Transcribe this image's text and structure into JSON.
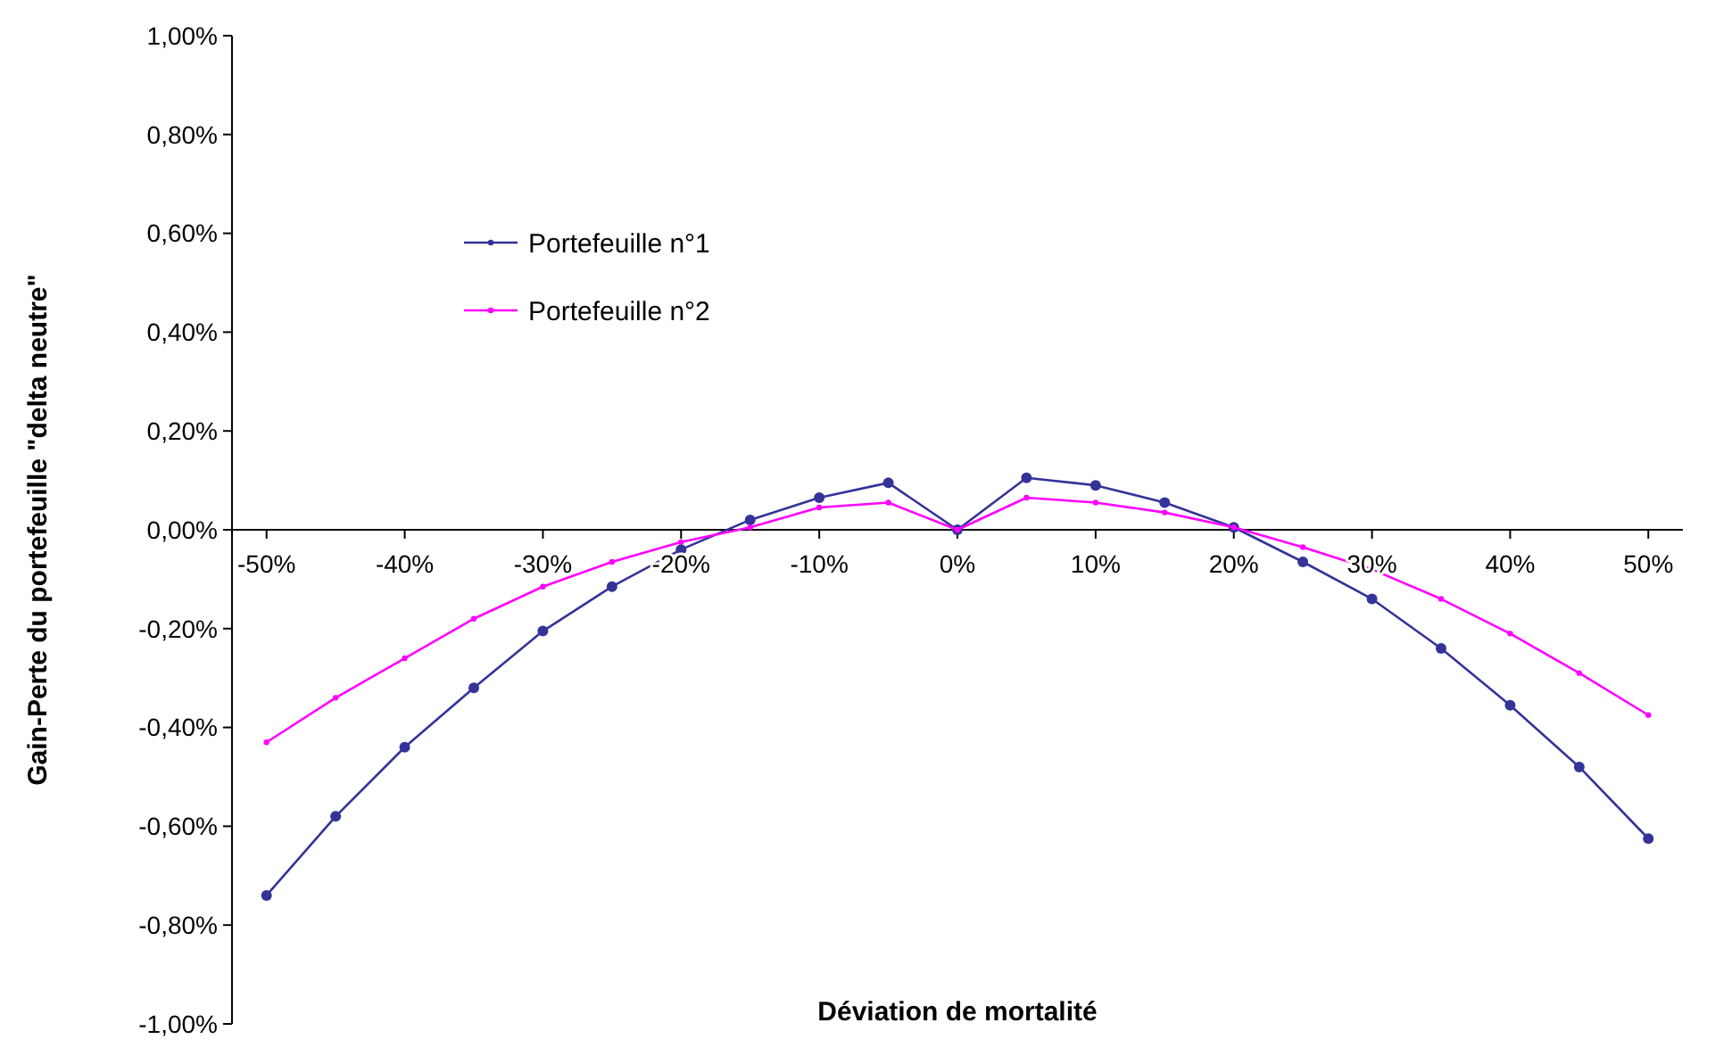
{
  "chart_data": {
    "type": "line",
    "xlabel": "Déviation de mortalité",
    "ylabel": "Gain-Perte du portefeuille \"delta neutre\"",
    "x": [
      -50,
      -45,
      -40,
      -35,
      -30,
      -25,
      -20,
      -15,
      -10,
      -5,
      0,
      5,
      10,
      15,
      20,
      25,
      30,
      35,
      40,
      45,
      50
    ],
    "xlim": [
      -52.5,
      52.5
    ],
    "xticks": [
      {
        "value": -50,
        "label": "-50%"
      },
      {
        "value": -40,
        "label": "-40%"
      },
      {
        "value": -30,
        "label": "-30%"
      },
      {
        "value": -20,
        "label": "-20%"
      },
      {
        "value": -10,
        "label": "-10%"
      },
      {
        "value": 0,
        "label": "0%"
      },
      {
        "value": 10,
        "label": "10%"
      },
      {
        "value": 20,
        "label": "20%"
      },
      {
        "value": 30,
        "label": "30%"
      },
      {
        "value": 40,
        "label": "40%"
      },
      {
        "value": 50,
        "label": "50%"
      }
    ],
    "ylim": [
      -1,
      1
    ],
    "yticks": [
      {
        "value": -1,
        "label": "-1,00%"
      },
      {
        "value": -0.8,
        "label": "-0,80%"
      },
      {
        "value": -0.6,
        "label": "-0,60%"
      },
      {
        "value": -0.4,
        "label": "-0,40%"
      },
      {
        "value": -0.2,
        "label": "-0,20%"
      },
      {
        "value": 0,
        "label": "0,00%"
      },
      {
        "value": 0.2,
        "label": "0,20%"
      },
      {
        "value": 0.4,
        "label": "0,40%"
      },
      {
        "value": 0.6,
        "label": "0,60%"
      },
      {
        "value": 0.8,
        "label": "0,80%"
      },
      {
        "value": 1,
        "label": "1,00%"
      }
    ],
    "series": [
      {
        "name": "Portefeuille n°1",
        "color": "#333399",
        "values": [
          -0.74,
          -0.58,
          -0.44,
          -0.32,
          -0.205,
          -0.115,
          -0.04,
          0.02,
          0.065,
          0.095,
          0,
          0.105,
          0.09,
          0.055,
          0.005,
          -0.065,
          -0.14,
          -0.24,
          -0.355,
          -0.48,
          -0.625
        ]
      },
      {
        "name": "Portefeuille n°2",
        "color": "#ff00ff",
        "values": [
          -0.43,
          -0.34,
          -0.26,
          -0.18,
          -0.115,
          -0.065,
          -0.025,
          0.005,
          0.045,
          0.055,
          0,
          0.065,
          0.055,
          0.035,
          0.005,
          -0.035,
          -0.08,
          -0.14,
          -0.21,
          -0.29,
          -0.375
        ]
      }
    ],
    "marker": "circle",
    "line_style": "solid",
    "legend": "top left",
    "grid": false
  }
}
